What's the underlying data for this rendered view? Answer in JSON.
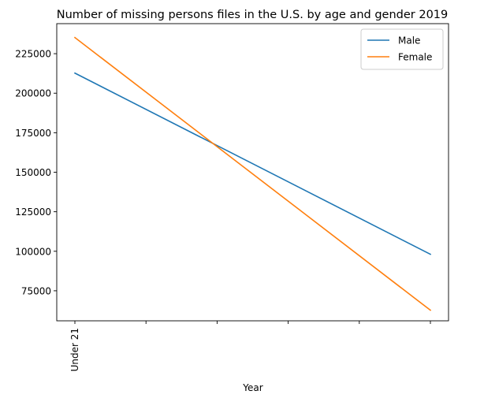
{
  "chart_data": {
    "type": "line",
    "title": "Number of missing persons files in the U.S. by age and gender 2019",
    "xlabel": "Year",
    "ylabel": "",
    "x_ticks": [
      "Under 21",
      "",
      "",
      "",
      "",
      ""
    ],
    "x_range": [
      0,
      5
    ],
    "ylim": [
      56000,
      244000
    ],
    "y_ticks": [
      75000,
      100000,
      125000,
      150000,
      175000,
      200000,
      225000
    ],
    "grid": false,
    "legend_position": "top-right",
    "series": [
      {
        "name": "Male",
        "color": "#1f77b4",
        "x": [
          0,
          5
        ],
        "values": [
          212700,
          98100
        ]
      },
      {
        "name": "Female",
        "color": "#ff7f0e",
        "x": [
          0,
          5
        ],
        "values": [
          235200,
          62700
        ]
      }
    ]
  }
}
